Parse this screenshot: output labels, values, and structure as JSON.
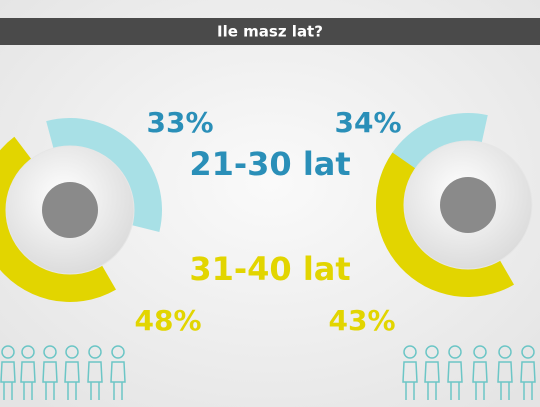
{
  "chart_data": {
    "type": "pie",
    "title": "Ile masz lat?",
    "categories": [
      "21-30 lat",
      "31-40 lat"
    ],
    "colors": [
      "#a8e0e6",
      "#e2d500"
    ],
    "series": [
      {
        "values": [
          33,
          48
        ],
        "value_labels": [
          "33%",
          "48%"
        ]
      },
      {
        "values": [
          34,
          43
        ],
        "value_labels": [
          "34%",
          "43%"
        ]
      }
    ]
  }
}
